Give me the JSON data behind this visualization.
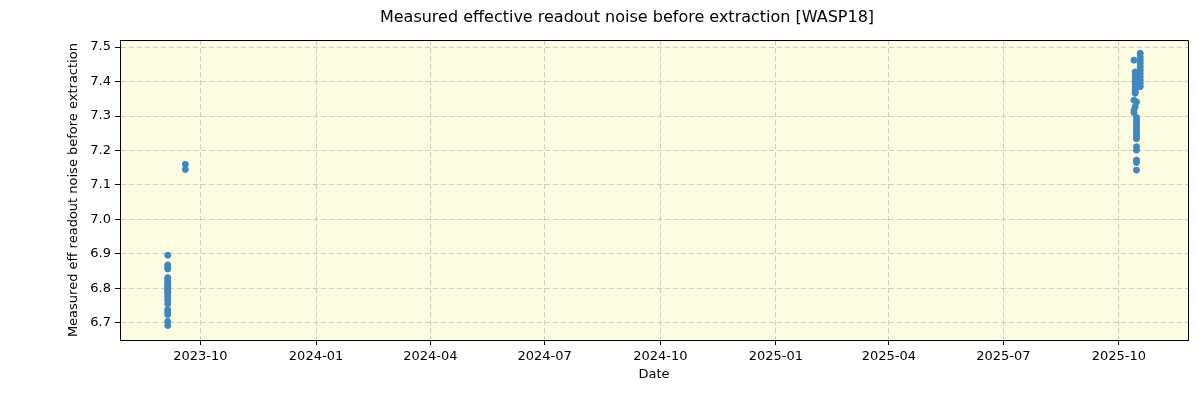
{
  "chart_data": {
    "type": "scatter",
    "title": "Measured effective readout noise before extraction [WASP18]",
    "xlabel": "Date",
    "ylabel": "Measured eff readout noise before extraction",
    "x": [
      "2023-09-05",
      "2023-09-05",
      "2023-09-05",
      "2023-09-05",
      "2023-09-05",
      "2023-09-05",
      "2023-09-05",
      "2023-09-05",
      "2023-09-05",
      "2023-09-05",
      "2023-09-05",
      "2023-09-05",
      "2023-09-05",
      "2023-09-05",
      "2023-09-05",
      "2023-09-05",
      "2023-09-05",
      "2023-09-05",
      "2023-09-05",
      "2023-09-05",
      "2023-09-05",
      "2023-09-05",
      "2023-09-05",
      "2023-09-19",
      "2023-09-19",
      "2025-10-18",
      "2025-10-18",
      "2025-10-18",
      "2025-10-18",
      "2025-10-18",
      "2025-10-18",
      "2025-10-18",
      "2025-10-18",
      "2025-10-18",
      "2025-10-18",
      "2025-10-18",
      "2025-10-13",
      "2025-10-14",
      "2025-10-14",
      "2025-10-14",
      "2025-10-14",
      "2025-10-14",
      "2025-10-14",
      "2025-10-14",
      "2025-10-14",
      "2025-10-14",
      "2025-10-14",
      "2025-10-13",
      "2025-10-15",
      "2025-10-14",
      "2025-10-13",
      "2025-10-13",
      "2025-10-15",
      "2025-10-15",
      "2025-10-15",
      "2025-10-15",
      "2025-10-15",
      "2025-10-15",
      "2025-10-15",
      "2025-10-15",
      "2025-10-15",
      "2025-10-15",
      "2025-10-15",
      "2025-10-15",
      "2025-10-15",
      "2025-10-15"
    ],
    "values": [
      6.896,
      6.868,
      6.861,
      6.856,
      6.831,
      6.827,
      6.82,
      6.815,
      6.81,
      6.805,
      6.801,
      6.796,
      6.791,
      6.786,
      6.778,
      6.772,
      6.765,
      6.755,
      6.738,
      6.731,
      6.724,
      6.704,
      6.692,
      7.16,
      7.145,
      7.482,
      7.472,
      7.462,
      7.453,
      7.443,
      7.433,
      7.424,
      7.414,
      7.404,
      7.395,
      7.385,
      7.462,
      7.428,
      7.422,
      7.414,
      7.406,
      7.399,
      7.393,
      7.385,
      7.377,
      7.37,
      7.366,
      7.346,
      7.341,
      7.327,
      7.317,
      7.31,
      7.296,
      7.288,
      7.281,
      7.273,
      7.265,
      7.257,
      7.25,
      7.242,
      7.234,
      7.211,
      7.201,
      7.172,
      7.165,
      7.143
    ],
    "color": "#3f88bf",
    "marker": "circle",
    "grid": true,
    "xlim": [
      "2023-07-29",
      "2025-11-25"
    ],
    "xticks": [
      "2023-10",
      "2024-01",
      "2024-04",
      "2024-07",
      "2024-10",
      "2025-01",
      "2025-04",
      "2025-07",
      "2025-10"
    ],
    "ylim": [
      6.65,
      7.52
    ],
    "yticks": [
      6.7,
      6.8,
      6.9,
      {
        "value": 7,
        "label": "7.0"
      },
      7.1,
      7.2,
      7.3,
      7.4,
      7.5
    ]
  }
}
